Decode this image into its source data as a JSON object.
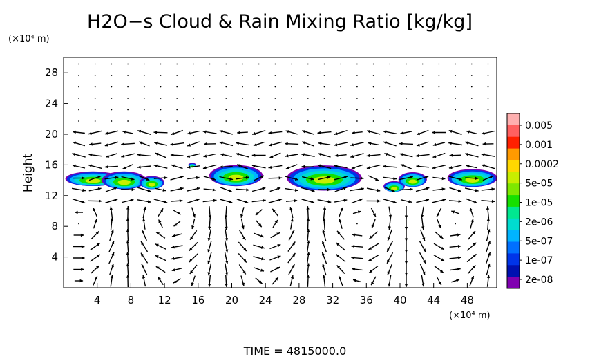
{
  "chart_data": {
    "type": "heatmap",
    "title": "H2O−s Cloud & Rain Mixing Ratio [kg/kg]",
    "xlabel": "",
    "ylabel": "Height",
    "x_unit": "(×10⁴ m)",
    "y_unit": "(×10⁴ m)",
    "xlim": [
      0,
      51.5
    ],
    "ylim": [
      0,
      30
    ],
    "x_ticks": [
      4,
      8,
      12,
      16,
      20,
      24,
      28,
      32,
      36,
      40,
      44,
      48
    ],
    "y_ticks": [
      4,
      8,
      12,
      16,
      20,
      24,
      28
    ],
    "time_label": "TIME  =  4815000.0",
    "colorbar": {
      "labels": [
        "0.005",
        "0.001",
        "0.0002",
        "5e-05",
        "1e-05",
        "2e-06",
        "5e-07",
        "1e-07",
        "2e-08"
      ],
      "colors": [
        "#ffb0b0",
        "#ff6060",
        "#ff2000",
        "#ff9a00",
        "#ffd800",
        "#c8ee00",
        "#7ee800",
        "#16e000",
        "#00e890",
        "#00dcd0",
        "#00b4ff",
        "#0070ff",
        "#0034e8",
        "#0010b0",
        "#8000b0"
      ]
    },
    "cloud_cells": [
      {
        "x": 3.5,
        "y": 14.2,
        "w": 6.2,
        "h": 1.8
      },
      {
        "x": 7.2,
        "y": 14.0,
        "w": 5.0,
        "h": 2.2
      },
      {
        "x": 10.5,
        "y": 13.7,
        "w": 2.8,
        "h": 1.6
      },
      {
        "x": 15.3,
        "y": 16.0,
        "w": 0.9,
        "h": 0.5
      },
      {
        "x": 20.5,
        "y": 14.6,
        "w": 6.0,
        "h": 2.6
      },
      {
        "x": 31.0,
        "y": 14.3,
        "w": 8.4,
        "h": 3.1
      },
      {
        "x": 39.3,
        "y": 13.2,
        "w": 2.4,
        "h": 1.3
      },
      {
        "x": 41.5,
        "y": 14.1,
        "w": 3.2,
        "h": 1.8
      },
      {
        "x": 48.6,
        "y": 14.3,
        "w": 5.6,
        "h": 2.2
      }
    ]
  }
}
